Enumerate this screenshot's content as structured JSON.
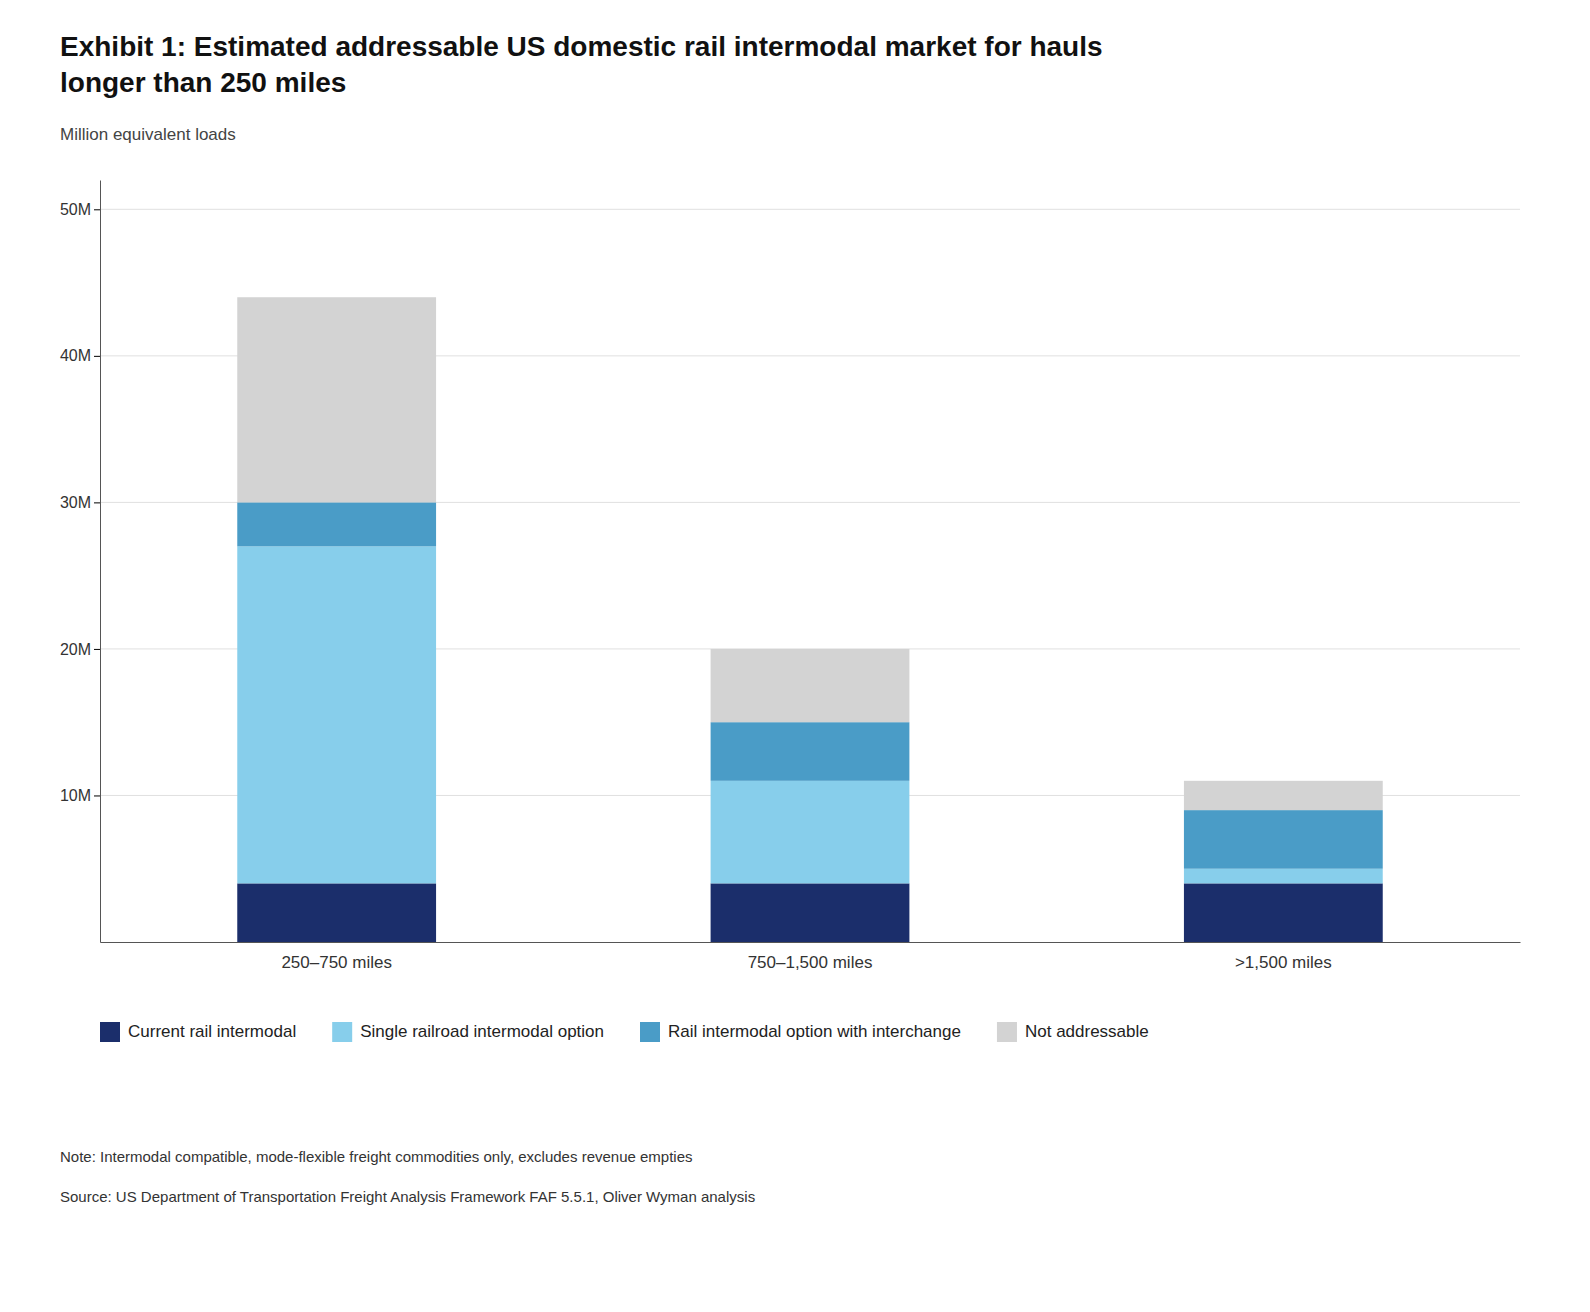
{
  "chart_data": {
    "type": "bar",
    "stacked": true,
    "title": "Exhibit 1: Estimated addressable US domestic rail intermodal market for hauls\nlonger than 250 miles",
    "subtitle": "Million equivalent loads",
    "categories": [
      "250–750 miles",
      "750–1,500 miles",
      ">1,500 miles"
    ],
    "series": [
      {
        "name": "Current rail intermodal",
        "color": "#1b2e6b",
        "values": [
          4,
          4,
          4
        ]
      },
      {
        "name": "Single railroad intermodal option",
        "color": "#87ceeb",
        "values": [
          23,
          7,
          1
        ]
      },
      {
        "name": "Rail intermodal option with interchange",
        "color": "#4a9cc7",
        "values": [
          3,
          4,
          4
        ]
      },
      {
        "name": "Not addressable",
        "color": "#d3d3d3",
        "values": [
          14,
          5,
          2
        ]
      }
    ],
    "ylim": [
      0,
      52
    ],
    "yticks": [
      {
        "value": 10,
        "label": "10M"
      },
      {
        "value": 20,
        "label": "20M"
      },
      {
        "value": 30,
        "label": "30M"
      },
      {
        "value": 40,
        "label": "40M"
      },
      {
        "value": 50,
        "label": "50M"
      }
    ],
    "grid": true,
    "legend": "bottom",
    "note": "Note: Intermodal compatible, mode-flexible freight commodities only, excludes revenue empties",
    "source": "Source: US Department of Transportation Freight Analysis Framework FAF 5.5.1, Oliver Wyman analysis"
  }
}
